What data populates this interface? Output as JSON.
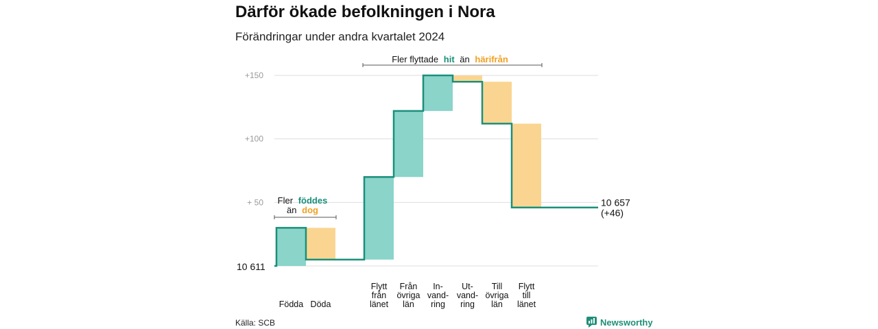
{
  "title": "Därför ökade befolkningen i Nora",
  "subtitle": "Förändringar under andra kvartalet 2024",
  "source": "Källa: SCB",
  "brand": "Newsworthy",
  "colors": {
    "increase": "#8ad4ca",
    "decrease": "#fad591",
    "line": "#1a8f7a",
    "grid": "#dddddd",
    "axis_text": "#9a9a9a"
  },
  "annotations": {
    "births": {
      "prefix": "Fler",
      "highlight": "föddes",
      "line2_prefix": "än",
      "line2_highlight": "dog"
    },
    "migration": {
      "prefix": "Fler flyttade",
      "highlight": "hit",
      "middle": "än",
      "highlight2": "härifrån"
    }
  },
  "chart_data": {
    "type": "waterfall",
    "title": "Därför ökade befolkningen i Nora",
    "subtitle": "Förändringar under andra kvartalet 2024",
    "baseline": 10611,
    "baseline_label": "10 611",
    "end_value": 10657,
    "end_label": "10 657",
    "end_change_label": "(+46)",
    "yticks": [
      {
        "value": 50,
        "label": "+ 50"
      },
      {
        "value": 100,
        "label": "+100"
      },
      {
        "value": 150,
        "label": "+150"
      }
    ],
    "ylim": [
      0,
      150
    ],
    "grid": true,
    "groups": [
      {
        "name": "births",
        "steps": [
          {
            "label_lines": [
              "Födda"
            ],
            "change": 30
          },
          {
            "label_lines": [
              "Döda"
            ],
            "change": -25
          }
        ]
      },
      {
        "name": "migration",
        "steps": [
          {
            "label_lines": [
              "Flytt",
              "från",
              "länet"
            ],
            "change": 65
          },
          {
            "label_lines": [
              "Från",
              "övriga",
              "län"
            ],
            "change": 52
          },
          {
            "label_lines": [
              "In-",
              "vand-",
              "ring"
            ],
            "change": 28
          },
          {
            "label_lines": [
              "Ut-",
              "vand-",
              "ring"
            ],
            "change": -5
          },
          {
            "label_lines": [
              "Till",
              "övriga",
              "län"
            ],
            "change": -33
          },
          {
            "label_lines": [
              "Flytt",
              "till",
              "länet"
            ],
            "change": -66
          }
        ]
      }
    ]
  }
}
